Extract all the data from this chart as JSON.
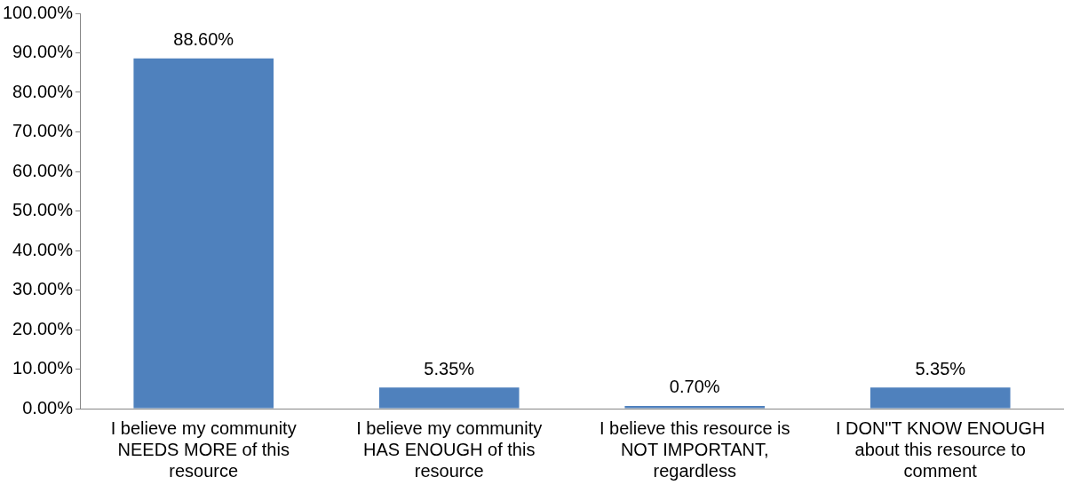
{
  "chart_data": {
    "type": "bar",
    "categories": [
      "I believe my community NEEDS MORE of this resource",
      "I believe my community HAS ENOUGH of this resource",
      "I believe this resource is NOT IMPORTANT, regardless",
      "I DON\"T KNOW ENOUGH about this resource to comment"
    ],
    "values": [
      88.6,
      5.35,
      0.7,
      5.35
    ],
    "value_labels": [
      "88.60%",
      "5.35%",
      "0.70%",
      "5.35%"
    ],
    "color": "#4f81bd",
    "ylim": [
      0,
      100
    ],
    "yticks": [
      {
        "value": 0,
        "label": "0.00%"
      },
      {
        "value": 10,
        "label": "10.00%"
      },
      {
        "value": 20,
        "label": "20.00%"
      },
      {
        "value": 30,
        "label": "30.00%"
      },
      {
        "value": 40,
        "label": "40.00%"
      },
      {
        "value": 50,
        "label": "50.00%"
      },
      {
        "value": 60,
        "label": "60.00%"
      },
      {
        "value": 70,
        "label": "70.00%"
      },
      {
        "value": 80,
        "label": "80.00%"
      },
      {
        "value": 90,
        "label": "90.00%"
      },
      {
        "value": 100,
        "label": "100.00%"
      }
    ],
    "grid": false,
    "legend": false
  }
}
